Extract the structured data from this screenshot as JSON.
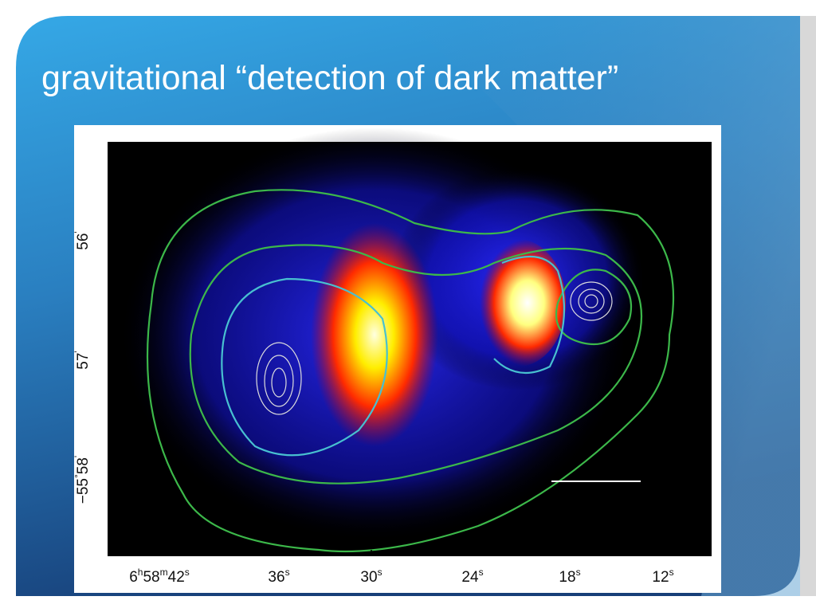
{
  "slide": {
    "title": "gravitational “detection of dark matter”",
    "figure": {
      "y_labels": [
        [
          "56",
          "'"
        ],
        [
          "57",
          "'"
        ],
        [
          "−55",
          "°",
          "58",
          "'"
        ]
      ],
      "x_labels": [
        [
          "6",
          "h",
          "58",
          "m",
          "42",
          "s"
        ],
        [
          "36",
          "s"
        ],
        [
          "30",
          "s"
        ],
        [
          "24",
          "s"
        ],
        [
          "18",
          "s"
        ],
        [
          "12",
          "s"
        ]
      ]
    }
  }
}
